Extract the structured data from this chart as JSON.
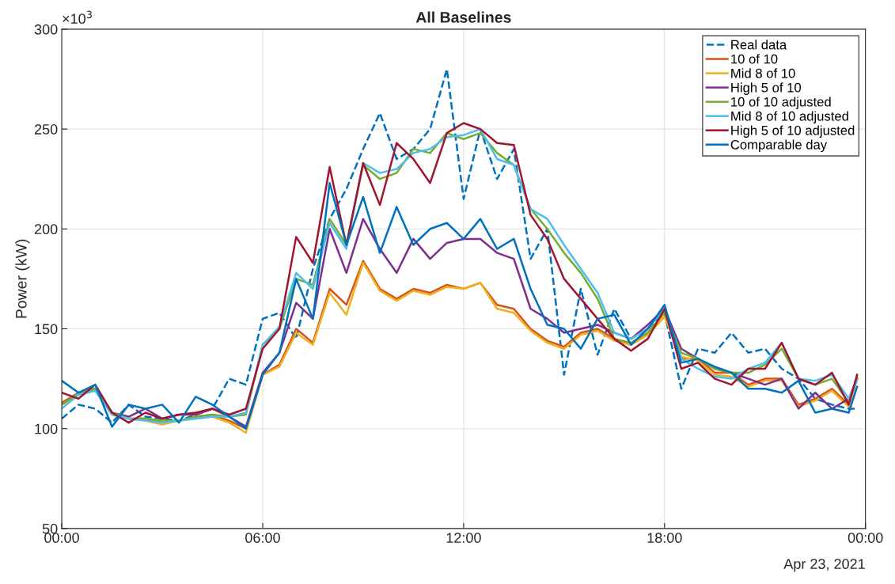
{
  "chart_data": {
    "type": "line",
    "title": "All Baselines",
    "ylabel": "Power (kW)",
    "annotations": [
      "×10$^{3}$",
      "Apr 23, 2021"
    ],
    "x": [
      0,
      0.5,
      1,
      1.5,
      2,
      2.5,
      3,
      3.5,
      4,
      4.5,
      5,
      5.5,
      6,
      6.5,
      7,
      7.5,
      8,
      8.5,
      9,
      9.5,
      10,
      10.5,
      11,
      11.5,
      12,
      12.5,
      13,
      13.5,
      14,
      14.5,
      15,
      15.5,
      16,
      16.5,
      17,
      17.5,
      18,
      18.5,
      19,
      19.5,
      20,
      20.5,
      21,
      21.5,
      22,
      22.5,
      23,
      23.5,
      23.75
    ],
    "xlim": [
      0,
      24
    ],
    "xticks": [
      {
        "value": 0,
        "label": "00:00"
      },
      {
        "value": 6,
        "label": "06:00"
      },
      {
        "value": 12,
        "label": "12:00"
      },
      {
        "value": 18,
        "label": "18:00"
      },
      {
        "value": 24,
        "label": "00:00"
      }
    ],
    "ylim": [
      50,
      300
    ],
    "yticks": [
      50,
      100,
      150,
      200,
      250,
      300
    ],
    "grid": true,
    "legend": "top right",
    "marker": "none",
    "series": [
      {
        "name": "Real data",
        "color": "#0072bd",
        "line_style": "dashed",
        "values": [
          105,
          112,
          110,
          103,
          112,
          106,
          105,
          104,
          107,
          110,
          125,
          122,
          155,
          158,
          145,
          180,
          205,
          220,
          240,
          258,
          235,
          240,
          250,
          280,
          215,
          250,
          225,
          240,
          185,
          200,
          127,
          170,
          137,
          160,
          145,
          150,
          158,
          120,
          140,
          138,
          148,
          138,
          140,
          130,
          125,
          115,
          112,
          110,
          110
        ]
      },
      {
        "name": "10 of 10",
        "color": "#d95319",
        "values": [
          113,
          118,
          120,
          108,
          105,
          105,
          103,
          104,
          106,
          107,
          104,
          100,
          127,
          132,
          150,
          143,
          170,
          162,
          184,
          170,
          165,
          170,
          168,
          172,
          170,
          173,
          162,
          160,
          150,
          144,
          141,
          148,
          150,
          145,
          142,
          148,
          158,
          135,
          135,
          128,
          128,
          122,
          125,
          125,
          112,
          115,
          120,
          112,
          125
        ]
      },
      {
        "name": "Mid 8 of 10",
        "color": "#edb120",
        "values": [
          112,
          117,
          119,
          107,
          105,
          104,
          102,
          104,
          105,
          106,
          103,
          98,
          127,
          131,
          148,
          142,
          168,
          157,
          183,
          169,
          164,
          169,
          167,
          171,
          170,
          173,
          160,
          158,
          149,
          143,
          140,
          147,
          149,
          144,
          142,
          147,
          156,
          136,
          134,
          127,
          126,
          121,
          124,
          124,
          111,
          114,
          119,
          111,
          126
        ]
      },
      {
        "name": "High 5 of 10",
        "color": "#7e2f8e",
        "values": [
          112,
          118,
          120,
          108,
          106,
          110,
          105,
          107,
          107,
          110,
          106,
          101,
          128,
          138,
          163,
          155,
          200,
          178,
          205,
          190,
          178,
          195,
          185,
          193,
          195,
          195,
          188,
          185,
          160,
          155,
          148,
          150,
          152,
          148,
          145,
          152,
          160,
          140,
          135,
          130,
          128,
          125,
          122,
          125,
          110,
          118,
          110,
          115,
          125
        ]
      },
      {
        "name": "10 of 10 adjusted",
        "color": "#77ac30",
        "values": [
          112,
          118,
          120,
          108,
          105,
          105,
          104,
          104,
          106,
          107,
          106,
          107,
          142,
          150,
          175,
          172,
          205,
          192,
          232,
          225,
          228,
          240,
          238,
          248,
          245,
          248,
          238,
          232,
          210,
          200,
          188,
          178,
          165,
          145,
          143,
          148,
          158,
          138,
          135,
          130,
          128,
          128,
          132,
          140,
          125,
          122,
          125,
          113,
          125
        ]
      },
      {
        "name": "Mid 8 of 10 adjusted",
        "color": "#4dbeee",
        "values": [
          110,
          117,
          119,
          107,
          105,
          104,
          103,
          104,
          105,
          106,
          106,
          108,
          142,
          151,
          178,
          170,
          203,
          190,
          233,
          228,
          230,
          238,
          240,
          246,
          247,
          250,
          235,
          232,
          210,
          205,
          192,
          180,
          168,
          148,
          145,
          150,
          160,
          135,
          130,
          126,
          125,
          130,
          133,
          143,
          125,
          124,
          127,
          115,
          124
        ]
      },
      {
        "name": "High 5 of 10 adjusted",
        "color": "#a2142f",
        "values": [
          118,
          115,
          122,
          108,
          103,
          108,
          105,
          107,
          108,
          110,
          107,
          110,
          140,
          150,
          196,
          183,
          231,
          192,
          233,
          212,
          243,
          235,
          223,
          248,
          253,
          250,
          243,
          242,
          207,
          195,
          175,
          165,
          155,
          145,
          139,
          145,
          160,
          130,
          133,
          125,
          122,
          130,
          130,
          143,
          125,
          122,
          128,
          112,
          127
        ]
      },
      {
        "name": "Comparable day",
        "color": "#0072bd",
        "values": [
          124,
          118,
          122,
          101,
          112,
          110,
          112,
          103,
          116,
          112,
          106,
          100,
          127,
          138,
          175,
          155,
          223,
          192,
          216,
          188,
          211,
          192,
          200,
          203,
          195,
          205,
          190,
          195,
          170,
          152,
          150,
          140,
          155,
          157,
          142,
          150,
          162,
          133,
          135,
          131,
          128,
          120,
          120,
          118,
          124,
          108,
          110,
          108,
          121
        ]
      }
    ]
  }
}
